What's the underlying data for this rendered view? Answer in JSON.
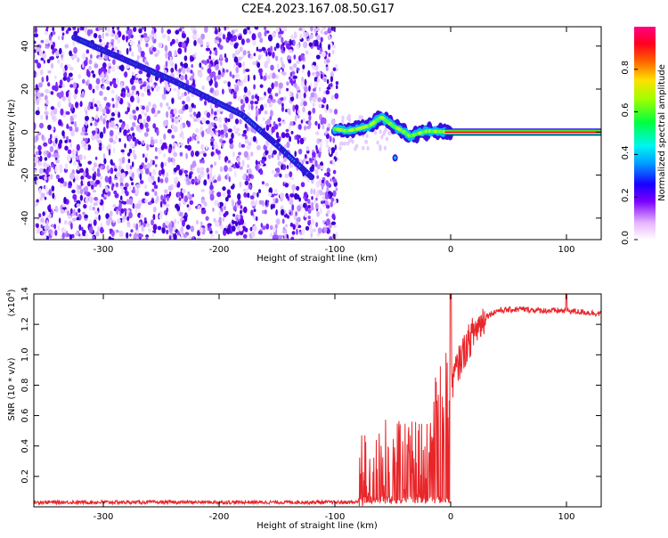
{
  "title": "C2E4.2023.167.08.50.G17",
  "colors": {
    "snr_line": "#e8262a",
    "track": "#2a1ad8",
    "speckle": "#7a2cff"
  },
  "chart_data": [
    {
      "type": "heatmap",
      "xlabel": "Height of straight line (km)",
      "ylabel": "Frequency (Hz)",
      "xlim": [
        -360,
        130
      ],
      "ylim": [
        -50,
        49
      ],
      "x_ticks": [
        -300,
        -200,
        -100,
        0,
        100
      ],
      "y_ticks": [
        -40,
        -20,
        0,
        20,
        40
      ],
      "x_tick_labels": [
        "-300",
        "-200",
        "-100",
        "0",
        "100"
      ],
      "y_tick_labels": [
        "-40",
        "-20",
        "0",
        "20",
        "40"
      ],
      "noise_region_x": [
        -360,
        -98
      ],
      "track_x": [
        -325,
        -300,
        -270,
        -240,
        -210,
        -180,
        -150,
        -120
      ],
      "track_y": [
        44,
        38,
        31,
        24,
        16,
        8,
        -6,
        -21
      ],
      "signal_x": [
        -100,
        -90,
        -80,
        -70,
        -60,
        -50,
        -40,
        -35,
        -30,
        -20,
        -10,
        0,
        50,
        100,
        130
      ],
      "signal_y": [
        1.5,
        0.5,
        1.5,
        3,
        7,
        3,
        0,
        -2,
        -1,
        0.5,
        0.2,
        0,
        0,
        0,
        0
      ],
      "colorbar": {
        "label": "Normalized spectral amplitude",
        "range": [
          0.0,
          1.0
        ],
        "ticks": [
          0.0,
          0.2,
          0.4,
          0.6,
          0.8
        ],
        "tick_labels": [
          "0.0",
          "0.2",
          "0.4",
          "0.6",
          "0.8"
        ]
      }
    },
    {
      "type": "line",
      "xlabel": "Height of straight line (km)",
      "ylabel": "SNR (10 * v/v)",
      "scale_label": "(x10",
      "scale_exp": "4",
      "scale_close": ")",
      "xlim": [
        -360,
        130
      ],
      "ylim": [
        0,
        1.4
      ],
      "x_ticks": [
        -300,
        -200,
        -100,
        0,
        100
      ],
      "y_ticks": [
        0.2,
        0.4,
        0.6,
        0.8,
        1.0,
        1.2,
        1.4
      ],
      "x_tick_labels": [
        "-300",
        "-200",
        "-100",
        "0",
        "100"
      ],
      "y_tick_labels": [
        "0.2",
        "0.4",
        "0.6",
        "0.8",
        "1.0",
        "1.2",
        "1.4"
      ],
      "x": [
        -360,
        -200,
        -100,
        -80,
        -78,
        -70,
        -60,
        -50,
        -40,
        -30,
        -20,
        -10,
        0,
        10,
        20,
        30,
        40,
        60,
        80,
        100,
        130
      ],
      "y": [
        0.03,
        0.03,
        0.03,
        0.03,
        0.2,
        0.25,
        0.3,
        0.3,
        0.3,
        0.3,
        0.4,
        0.65,
        0.8,
        1.0,
        1.15,
        1.25,
        1.29,
        1.3,
        1.29,
        1.29,
        1.27
      ]
    }
  ]
}
